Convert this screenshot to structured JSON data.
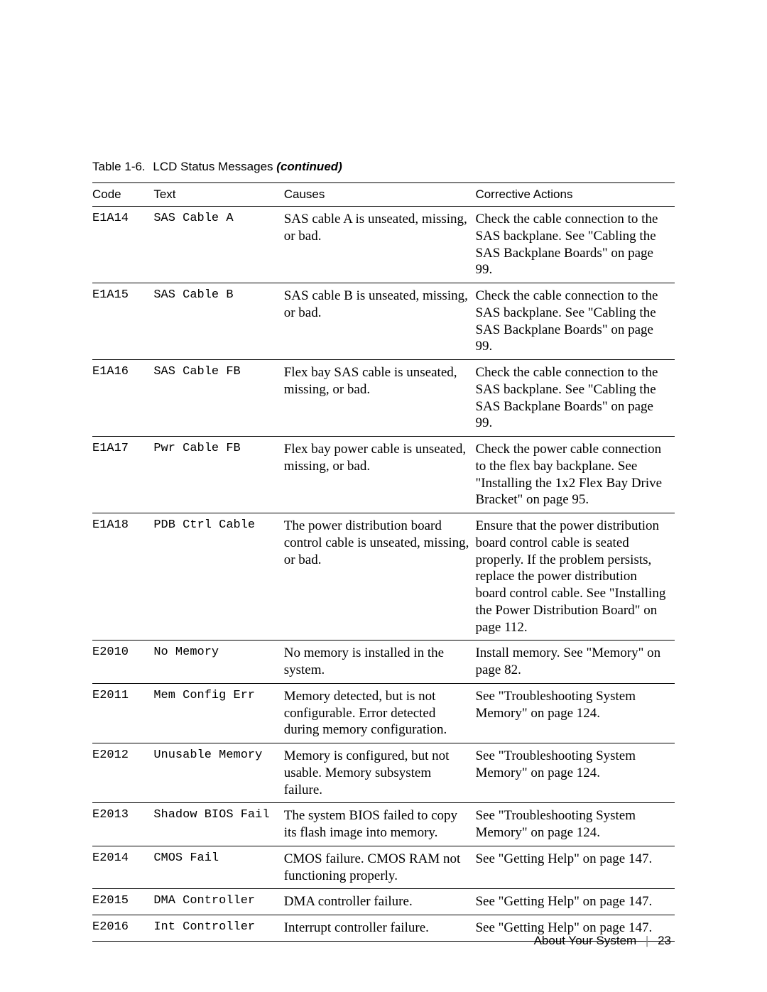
{
  "caption": {
    "label": "Table 1-6.",
    "title": "LCD Status Messages",
    "continued": "(continued)"
  },
  "columns": {
    "code": "Code",
    "text": "Text",
    "causes": "Causes",
    "actions": "Corrective Actions"
  },
  "rows": [
    {
      "code": "E1A14",
      "text": "SAS Cable A",
      "cause": "SAS cable A is unseated, missing, or bad.",
      "action": "Check the cable connection to the SAS backplane. See \"Cabling the SAS Backplane Boards\" on page 99."
    },
    {
      "code": "E1A15",
      "text": "SAS Cable B",
      "cause": "SAS cable B is unseated, missing, or bad.",
      "action": "Check the cable connection to the SAS backplane. See \"Cabling the SAS Backplane Boards\" on page 99."
    },
    {
      "code": "E1A16",
      "text": "SAS Cable FB",
      "cause": "Flex bay SAS cable is unseated, missing, or bad.",
      "action": "Check the cable connection to the SAS backplane. See \"Cabling the SAS Backplane Boards\" on page 99."
    },
    {
      "code": "E1A17",
      "text": "Pwr Cable FB",
      "cause": "Flex bay power cable is unseated, missing, or bad.",
      "action": "Check the power cable connection to the flex bay backplane. See \"Installing the 1x2 Flex Bay Drive Bracket\" on page 95."
    },
    {
      "code": "E1A18",
      "text": "PDB Ctrl Cable",
      "cause": "The power distribution board control cable is unseated, missing, or bad.",
      "action": "Ensure that the power distribution board control cable is seated properly. If the problem persists, replace the power distribution board control cable. See \"Installing the Power Distribution Board\" on page 112."
    },
    {
      "code": "E2010",
      "text": "No Memory",
      "cause": "No memory is installed in the system.",
      "action": "Install memory. See \"Memory\" on page 82."
    },
    {
      "code": "E2011",
      "text": "Mem Config Err",
      "cause": "Memory detected, but is not configurable. Error detected during memory configuration.",
      "action": "See \"Troubleshooting System Memory\" on page 124."
    },
    {
      "code": "E2012",
      "text": "Unusable Memory",
      "cause": "Memory is configured, but not usable. Memory subsystem failure.",
      "action": "See \"Troubleshooting System Memory\" on page 124."
    },
    {
      "code": "E2013",
      "text": "Shadow BIOS Fail",
      "cause": "The system BIOS failed to copy its flash image into memory.",
      "action": "See \"Troubleshooting System Memory\" on page 124."
    },
    {
      "code": "E2014",
      "text": "CMOS Fail",
      "cause": "CMOS failure. CMOS RAM not functioning properly.",
      "action": "See \"Getting Help\" on page 147."
    },
    {
      "code": "E2015",
      "text": "DMA Controller",
      "cause": "DMA controller failure.",
      "action": "See \"Getting Help\" on page 147."
    },
    {
      "code": "E2016",
      "text": "Int Controller",
      "cause": "Interrupt controller failure.",
      "action": "See \"Getting Help\" on page 147."
    }
  ],
  "footer": {
    "section": "About Your System",
    "page": "23"
  }
}
